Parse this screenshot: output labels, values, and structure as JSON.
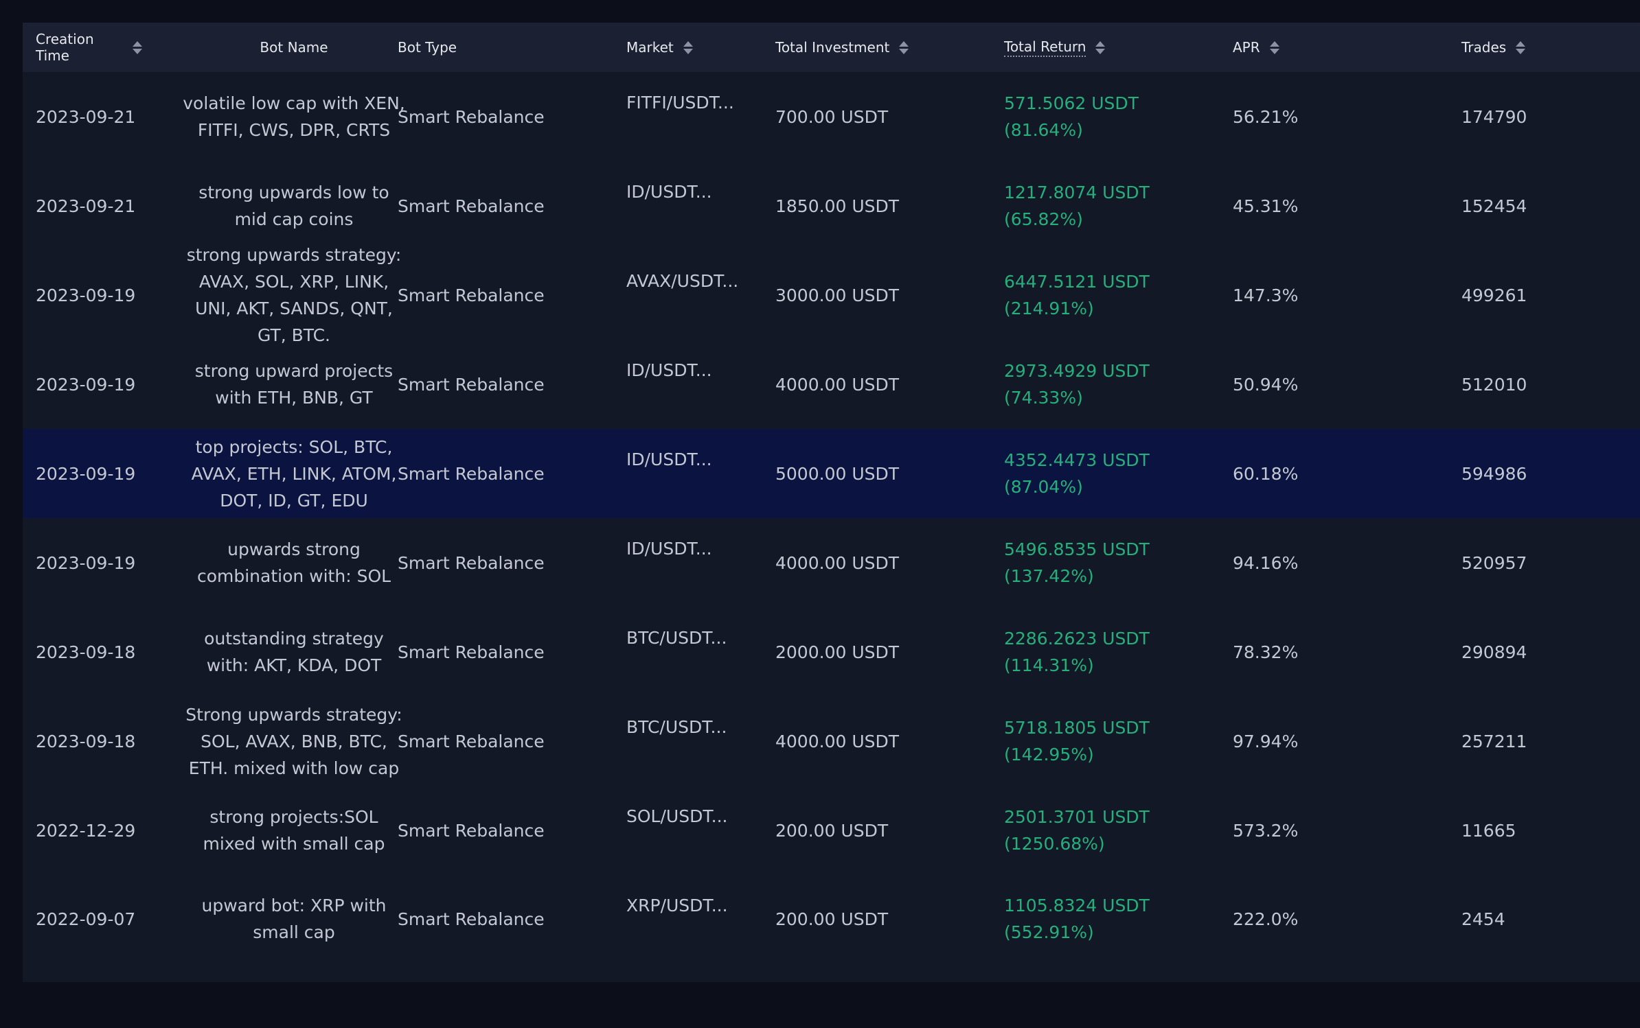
{
  "columns": {
    "creation_time_line1": "Creation",
    "creation_time_line2": "Time",
    "bot_name": "Bot Name",
    "bot_type": "Bot Type",
    "market": "Market",
    "total_investment": "Total Investment",
    "total_return": "Total Return",
    "apr": "APR",
    "trades": "Trades"
  },
  "colors": {
    "return_green": "#25b07b",
    "selected_row": "#0b1440",
    "header_bg": "#1b2133"
  },
  "rows": [
    {
      "time": "2023-09-21",
      "name_lines": [
        "volatile low cap with XEN,",
        "FITFI, CWS, DPR, CRTS"
      ],
      "type": "Smart Rebalance",
      "market": "FITFI/USDT...",
      "investment": "700.00 USDT",
      "return_amount": "571.5062 USDT",
      "return_pct": "(81.64%)",
      "apr": "56.21%",
      "trades": "174790"
    },
    {
      "time": "2023-09-21",
      "name_lines": [
        "strong upwards low to",
        "mid cap coins"
      ],
      "type": "Smart Rebalance",
      "market": "ID/USDT...",
      "investment": "1850.00 USDT",
      "return_amount": "1217.8074 USDT",
      "return_pct": "(65.82%)",
      "apr": "45.31%",
      "trades": "152454"
    },
    {
      "time": "2023-09-19",
      "name_lines": [
        "strong upwards strategy:",
        "AVAX, SOL, XRP, LINK,",
        "UNI, AKT, SANDS, QNT,",
        "GT, BTC."
      ],
      "type": "Smart Rebalance",
      "market": "AVAX/USDT...",
      "investment": "3000.00 USDT",
      "return_amount": "6447.5121 USDT",
      "return_pct": "(214.91%)",
      "apr": "147.3%",
      "trades": "499261"
    },
    {
      "time": "2023-09-19",
      "name_lines": [
        "strong upward projects",
        "with ETH, BNB, GT"
      ],
      "type": "Smart Rebalance",
      "market": "ID/USDT...",
      "investment": "4000.00 USDT",
      "return_amount": "2973.4929 USDT",
      "return_pct": "(74.33%)",
      "apr": "50.94%",
      "trades": "512010"
    },
    {
      "time": "2023-09-19",
      "name_lines": [
        "top projects: SOL, BTC,",
        "AVAX, ETH, LINK, ATOM,",
        "DOT, ID, GT, EDU"
      ],
      "type": "Smart Rebalance",
      "market": "ID/USDT...",
      "investment": "5000.00 USDT",
      "return_amount": "4352.4473 USDT",
      "return_pct": "(87.04%)",
      "apr": "60.18%",
      "trades": "594986"
    },
    {
      "time": "2023-09-19",
      "name_lines": [
        "upwards strong",
        "combination with: SOL"
      ],
      "type": "Smart Rebalance",
      "market": "ID/USDT...",
      "investment": "4000.00 USDT",
      "return_amount": "5496.8535 USDT",
      "return_pct": "(137.42%)",
      "apr": "94.16%",
      "trades": "520957"
    },
    {
      "time": "2023-09-18",
      "name_lines": [
        "outstanding strategy",
        "with: AKT, KDA, DOT"
      ],
      "type": "Smart Rebalance",
      "market": "BTC/USDT...",
      "investment": "2000.00 USDT",
      "return_amount": "2286.2623 USDT",
      "return_pct": "(114.31%)",
      "apr": "78.32%",
      "trades": "290894"
    },
    {
      "time": "2023-09-18",
      "name_lines": [
        "Strong upwards strategy:",
        "SOL, AVAX, BNB, BTC,",
        "ETH. mixed with low cap"
      ],
      "type": "Smart Rebalance",
      "market": "BTC/USDT...",
      "investment": "4000.00 USDT",
      "return_amount": "5718.1805 USDT",
      "return_pct": "(142.95%)",
      "apr": "97.94%",
      "trades": "257211"
    },
    {
      "time": "2022-12-29",
      "name_lines": [
        "strong projects:SOL",
        "mixed with small cap"
      ],
      "type": "Smart Rebalance",
      "market": "SOL/USDT...",
      "investment": "200.00 USDT",
      "return_amount": "2501.3701 USDT",
      "return_pct": "(1250.68%)",
      "apr": "573.2%",
      "trades": "11665"
    },
    {
      "time": "2022-09-07",
      "name_lines": [
        "upward bot: XRP with",
        "small cap"
      ],
      "type": "Smart Rebalance",
      "market": "XRP/USDT...",
      "investment": "200.00 USDT",
      "return_amount": "1105.8324 USDT",
      "return_pct": "(552.91%)",
      "apr": "222.0%",
      "trades": "2454"
    }
  ],
  "selected_row_index": 4
}
